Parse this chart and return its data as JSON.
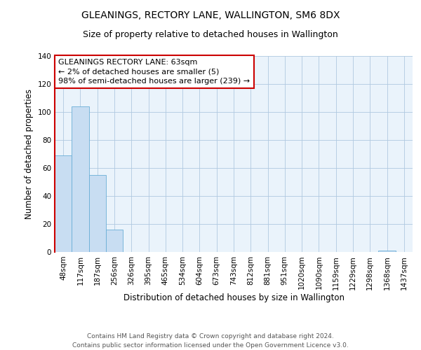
{
  "title": "GLEANINGS, RECTORY LANE, WALLINGTON, SM6 8DX",
  "subtitle": "Size of property relative to detached houses in Wallington",
  "xlabel": "Distribution of detached houses by size in Wallington",
  "ylabel": "Number of detached properties",
  "bar_color": "#c8ddf2",
  "bar_edge_color": "#6aaed6",
  "background_color": "#eaf3fb",
  "categories": [
    "48sqm",
    "117sqm",
    "187sqm",
    "256sqm",
    "326sqm",
    "395sqm",
    "465sqm",
    "534sqm",
    "604sqm",
    "673sqm",
    "743sqm",
    "812sqm",
    "881sqm",
    "951sqm",
    "1020sqm",
    "1090sqm",
    "1159sqm",
    "1229sqm",
    "1298sqm",
    "1368sqm",
    "1437sqm"
  ],
  "values": [
    69,
    104,
    55,
    16,
    0,
    0,
    0,
    0,
    0,
    0,
    0,
    0,
    0,
    0,
    0,
    0,
    0,
    0,
    0,
    1,
    0
  ],
  "ylim": [
    0,
    140
  ],
  "yticks": [
    0,
    20,
    40,
    60,
    80,
    100,
    120,
    140
  ],
  "annotation_box_text": "GLEANINGS RECTORY LANE: 63sqm\n← 2% of detached houses are smaller (5)\n98% of semi-detached houses are larger (239) →",
  "annotation_box_color": "#ffffff",
  "annotation_box_edge_color": "#cc0000",
  "marker_line_color": "#cc0000",
  "footer_line1": "Contains HM Land Registry data © Crown copyright and database right 2024.",
  "footer_line2": "Contains public sector information licensed under the Open Government Licence v3.0.",
  "grid_color": "#b0c8e0",
  "title_fontsize": 10,
  "subtitle_fontsize": 9,
  "axis_label_fontsize": 8.5,
  "tick_fontsize": 7.5,
  "annotation_fontsize": 8,
  "footer_fontsize": 6.5
}
